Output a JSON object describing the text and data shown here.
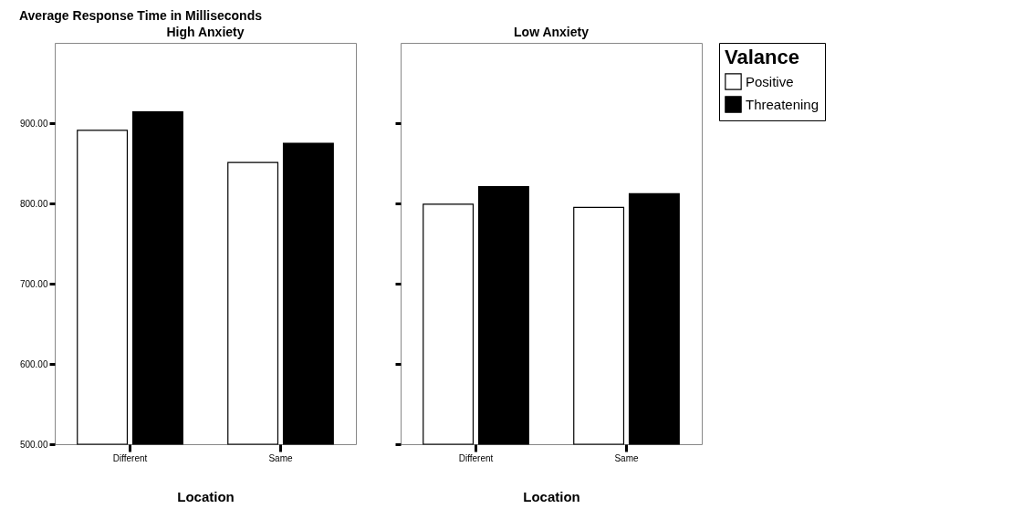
{
  "chart_data": [
    {
      "type": "bar",
      "title": "High Anxiety",
      "xlabel": "Location",
      "legend_title": "Valance",
      "legend": "right",
      "annotations": [
        "Average Response Time in Milliseconds"
      ],
      "categories": [
        "Different",
        "Same"
      ],
      "series": [
        {
          "name": "Positive",
          "color": "#ffffff",
          "values": [
            891,
            851
          ]
        },
        {
          "name": "Threatening",
          "color": "#000000",
          "values": [
            914,
            875
          ]
        }
      ],
      "ylim": [
        500,
        1000
      ],
      "yticks": [
        {
          "value": 500,
          "label": "500.00"
        },
        {
          "value": 600,
          "label": "600.00"
        },
        {
          "value": 700,
          "label": "700.00"
        },
        {
          "value": 800,
          "label": "800.00"
        },
        {
          "value": 900,
          "label": "900.00"
        }
      ],
      "grid": false
    },
    {
      "type": "bar",
      "title": "Low Anxiety",
      "xlabel": "Location",
      "tick_labels": "x",
      "categories": [
        "Different",
        "Same"
      ],
      "series": [
        {
          "color": "#ffffff",
          "values": [
            799,
            795
          ]
        },
        {
          "color": "#000000",
          "values": [
            821,
            812
          ]
        }
      ],
      "ylim": [
        500,
        1000
      ],
      "yticks": [
        {
          "value": 500,
          "label": null
        },
        {
          "value": 600,
          "label": null
        },
        {
          "value": 700,
          "label": null
        },
        {
          "value": 800,
          "label": null
        },
        {
          "value": 900,
          "label": null
        }
      ],
      "grid": false
    }
  ]
}
